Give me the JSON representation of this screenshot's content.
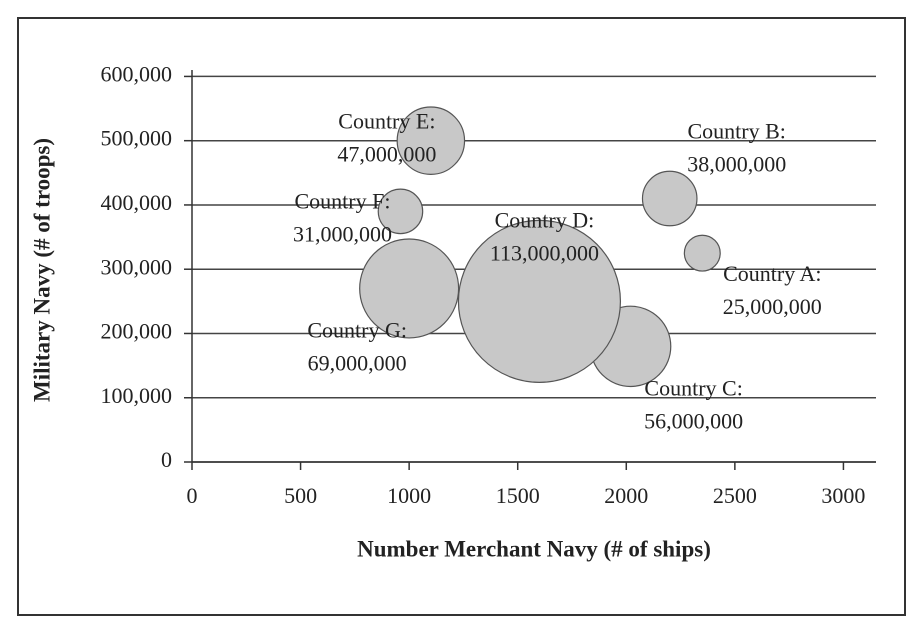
{
  "chart_data": {
    "type": "bubble",
    "xlabel": "Number Merchant Navy (# of ships)",
    "ylabel": "Military Navy (# of troops)",
    "labels": [
      "Country A:",
      "Country B:",
      "Country C:",
      "Country D:",
      "Country E:",
      "Country F:",
      "Country G:"
    ],
    "x": [
      2350,
      2200,
      2020,
      1600,
      1100,
      960,
      1000
    ],
    "values": [
      325000,
      410000,
      180000,
      250000,
      500000,
      390000,
      270000
    ],
    "sizes": [
      25000000,
      38000000,
      56000000,
      113000000,
      47000000,
      31000000,
      69000000
    ],
    "size_labels": [
      "25,000,000",
      "38,000,000",
      "56,000,000",
      "113,000,000",
      "47,000,000",
      "31,000,000",
      "69,000,000"
    ],
    "color": "#c8c8c8",
    "xlim": [
      0,
      3150
    ],
    "xticks": [
      0,
      500,
      1000,
      1500,
      2000,
      2500,
      3000
    ],
    "ylim": [
      0,
      610000
    ],
    "yticks": [
      0,
      {
        "value": 100000,
        "label": "100,000"
      },
      {
        "value": 200000,
        "label": "200,000"
      },
      {
        "value": 300000,
        "label": "300,000"
      },
      {
        "value": 400000,
        "label": "400,000"
      },
      {
        "value": 500000,
        "label": "500,000"
      },
      {
        "value": 600000,
        "label": "600,000"
      }
    ],
    "grid": true
  }
}
